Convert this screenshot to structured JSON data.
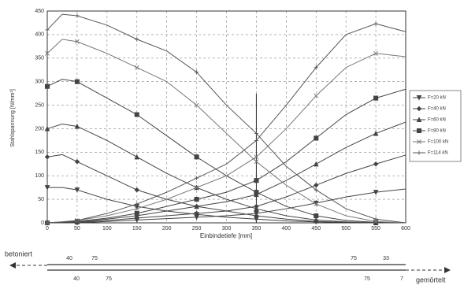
{
  "chart_data": {
    "type": "line",
    "y_label": "Stahlspannung [N/mm²]",
    "x_label": "Einbindetiefe [mm]",
    "x": [
      0,
      25,
      50,
      100,
      150,
      200,
      250,
      300,
      350,
      400,
      450,
      500,
      550,
      600
    ],
    "xlim": [
      0,
      600
    ],
    "xticks": [
      0,
      50,
      100,
      150,
      200,
      250,
      300,
      350,
      400,
      450,
      500,
      550,
      600
    ],
    "ylim": [
      0,
      450
    ],
    "yticks": [
      0,
      50,
      100,
      150,
      200,
      250,
      300,
      350,
      400,
      450
    ],
    "grid": true,
    "vline": 350,
    "legend": "right",
    "series": [
      {
        "name": "F=20 kN",
        "color": "#444",
        "marker": "triangle-down",
        "values": [
          75,
          75,
          70,
          50,
          35,
          25,
          18,
          12,
          8,
          4,
          2,
          1,
          0,
          0
        ],
        "values_right": [
          0,
          0,
          0,
          3,
          6,
          9,
          12,
          15,
          20,
          30,
          42,
          55,
          65,
          72
        ]
      },
      {
        "name": "F=40 kN",
        "color": "#444",
        "marker": "diamond",
        "values": [
          140,
          145,
          130,
          100,
          70,
          50,
          35,
          25,
          15,
          8,
          3,
          1,
          0,
          0
        ],
        "values_right": [
          0,
          0,
          1,
          5,
          10,
          15,
          20,
          25,
          35,
          55,
          80,
          105,
          125,
          144
        ]
      },
      {
        "name": "F=60 kN",
        "color": "#444",
        "marker": "triangle-up",
        "values": [
          200,
          210,
          205,
          175,
          140,
          105,
          75,
          50,
          30,
          15,
          6,
          2,
          0,
          0
        ],
        "values_right": [
          0,
          1,
          2,
          8,
          15,
          25,
          35,
          45,
          60,
          90,
          125,
          160,
          190,
          214
        ]
      },
      {
        "name": "F=80 kN",
        "color": "#444",
        "marker": "square",
        "values": [
          290,
          305,
          300,
          265,
          230,
          185,
          140,
          100,
          65,
          35,
          15,
          5,
          1,
          0
        ],
        "values_right": [
          0,
          1,
          3,
          10,
          20,
          35,
          50,
          65,
          90,
          130,
          180,
          230,
          265,
          284
        ]
      },
      {
        "name": "F=100 kN",
        "color": "#777",
        "marker": "cross",
        "values": [
          360,
          390,
          385,
          360,
          330,
          300,
          250,
          190,
          130,
          80,
          40,
          15,
          3,
          0
        ],
        "values_right": [
          0,
          2,
          5,
          15,
          30,
          50,
          75,
          100,
          140,
          200,
          270,
          330,
          360,
          353
        ]
      },
      {
        "name": "F=114 kN",
        "color": "#555",
        "marker": "plus",
        "values": [
          410,
          443,
          440,
          420,
          390,
          365,
          320,
          250,
          190,
          120,
          70,
          30,
          8,
          0
        ],
        "values_right": [
          0,
          2,
          5,
          20,
          40,
          65,
          95,
          125,
          175,
          250,
          330,
          400,
          423,
          406
        ]
      }
    ],
    "bottom_scale": {
      "left_label": "betoniert",
      "right_label": "gemörtelt",
      "top_numbers": [
        "40",
        "75",
        "75",
        "33"
      ],
      "bottom_numbers": [
        "40",
        "75",
        "75",
        "7"
      ]
    }
  }
}
